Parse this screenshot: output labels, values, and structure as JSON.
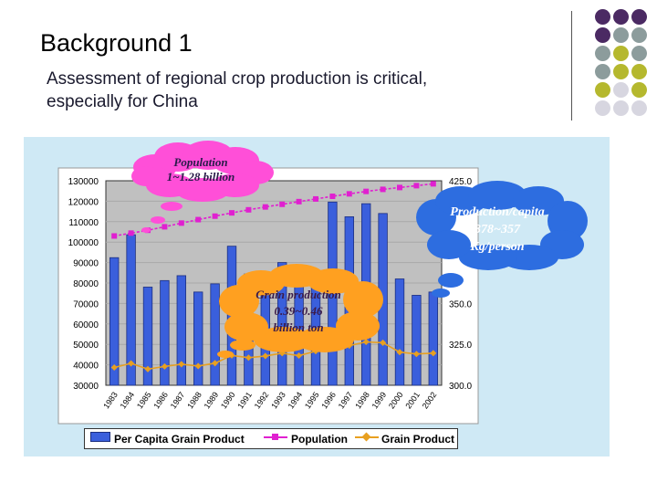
{
  "slide": {
    "title": "Background 1",
    "subtitle": "Assessment of regional crop production is critical, especially for China"
  },
  "decor_colors": [
    "#4b2a63",
    "#8c9c9c",
    "#b5b82e",
    "#d7d6e0"
  ],
  "callouts": {
    "population": {
      "line1": "Population",
      "line2": "1~1.28 billion",
      "color": "#ff4fd8"
    },
    "production_capita": {
      "line1": "Production/capita",
      "line2": "378~357",
      "line3": "Kg/person",
      "color": "#2d6de0"
    },
    "grain_production": {
      "line1": "Grain production",
      "line2": "0.39~0.46",
      "line3": "billion ton",
      "color": "#ffa020"
    }
  },
  "legend": {
    "bar": "Per Capita Grain Product",
    "population": "Population",
    "grain": "Grain Product"
  },
  "chart_data": {
    "type": "bar",
    "categories": [
      "1983",
      "1984",
      "1985",
      "1986",
      "1987",
      "1988",
      "1989",
      "1990",
      "1991",
      "1992",
      "1993",
      "1994",
      "1995",
      "1996",
      "1997",
      "1998",
      "1999",
      "2000",
      "2001",
      "2002"
    ],
    "left_axis": {
      "min": 30000,
      "max": 130000,
      "ticks": [
        "130000",
        "120000",
        "110000",
        "100000",
        "90000",
        "80000",
        "70000",
        "60000",
        "50000",
        "40000",
        "30000"
      ]
    },
    "right_axis": {
      "min": 300,
      "max": 425,
      "ticks": [
        "425.0",
        "350.0",
        "325.0",
        "300.0"
      ]
    },
    "series": [
      {
        "name": "Per Capita Grain Product",
        "type": "bar",
        "axis": "right",
        "color": "#3a5fdc",
        "values": [
          378,
          392,
          360,
          364,
          367,
          357,
          362,
          385,
          368,
          369,
          375,
          366,
          369,
          412,
          403,
          411,
          405,
          365,
          355,
          357
        ]
      },
      {
        "name": "Population",
        "type": "line",
        "axis": "left",
        "color": "#e020d0",
        "values": [
          103000,
          104400,
          105800,
          107500,
          109300,
          111000,
          112700,
          114300,
          115800,
          117200,
          118500,
          119800,
          121100,
          122400,
          123600,
          124800,
          125800,
          126700,
          127600,
          128500
        ]
      },
      {
        "name": "Grain Product",
        "type": "line",
        "axis": "left",
        "color": "#e8a020",
        "values": [
          38700,
          40700,
          37900,
          39200,
          40300,
          39400,
          40800,
          44600,
          43500,
          44300,
          45700,
          44500,
          46700,
          50500,
          49400,
          51200,
          50800,
          46200,
          45300,
          45700
        ]
      }
    ]
  }
}
